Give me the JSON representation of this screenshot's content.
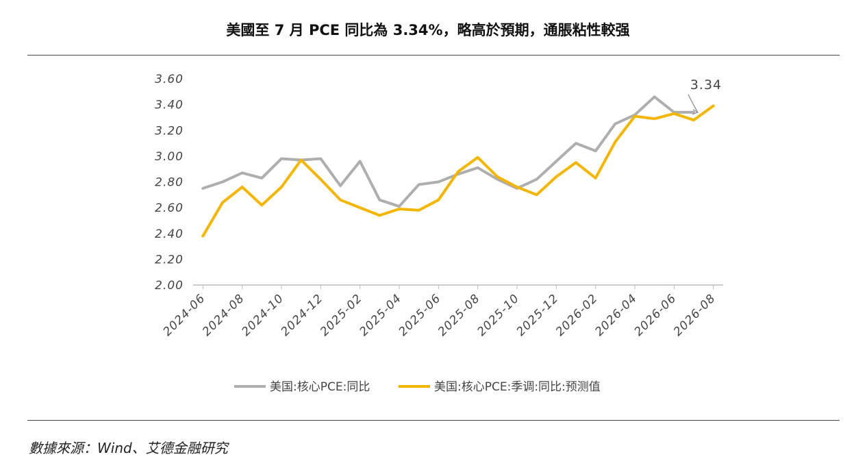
{
  "title": "美國至 7 月 PCE 同比為 3.34%，略高於預期，通脹粘性較强",
  "source": "數據來源：Wind、艾德金融研究",
  "colors": {
    "series_gray": "#b0adad",
    "series_yellow": "#f2b600",
    "axis": "#bbbbbb"
  },
  "chart_data": {
    "type": "line",
    "x": [
      "2024-06",
      "2024-07",
      "2024-08",
      "2024-09",
      "2024-10",
      "2024-11",
      "2024-12",
      "2025-01",
      "2025-02",
      "2025-03",
      "2025-04",
      "2025-05",
      "2025-06",
      "2025-07",
      "2025-08",
      "2025-09",
      "2025-10",
      "2025-11",
      "2025-12",
      "2026-01",
      "2026-02",
      "2026-03",
      "2026-04",
      "2026-05",
      "2026-06",
      "2026-07",
      "2026-08"
    ],
    "x_tick_labels": [
      "2024-06",
      "2024-08",
      "2024-10",
      "2024-12",
      "2025-02",
      "2025-04",
      "2025-06",
      "2025-08",
      "2025-10",
      "2025-12",
      "2026-02",
      "2026-04",
      "2026-06",
      "2026-08"
    ],
    "ylim": [
      2.0,
      3.6
    ],
    "y_ticks": [
      "2.00",
      "2.20",
      "2.40",
      "2.60",
      "2.80",
      "3.00",
      "3.20",
      "3.40",
      "3.60"
    ],
    "grid": false,
    "legend_position": "bottom",
    "series": [
      {
        "name": "美国:核心PCE:同比",
        "values": [
          2.75,
          2.8,
          2.87,
          2.83,
          2.98,
          2.97,
          2.98,
          2.77,
          2.96,
          2.66,
          2.61,
          2.78,
          2.8,
          2.86,
          2.91,
          2.82,
          2.75,
          2.82,
          2.96,
          3.1,
          3.04,
          3.25,
          3.32,
          3.46,
          3.34,
          3.34,
          null
        ]
      },
      {
        "name": "美国:核心PCE:季调:同比:预测值",
        "values": [
          2.38,
          2.64,
          2.76,
          2.62,
          2.76,
          2.97,
          2.82,
          2.66,
          2.6,
          2.54,
          2.59,
          2.58,
          2.66,
          2.88,
          2.99,
          2.84,
          2.76,
          2.7,
          2.84,
          2.95,
          2.83,
          3.11,
          3.31,
          3.29,
          3.33,
          3.28,
          3.39
        ]
      }
    ],
    "annotations": [
      {
        "text": "3.34"
      }
    ]
  }
}
